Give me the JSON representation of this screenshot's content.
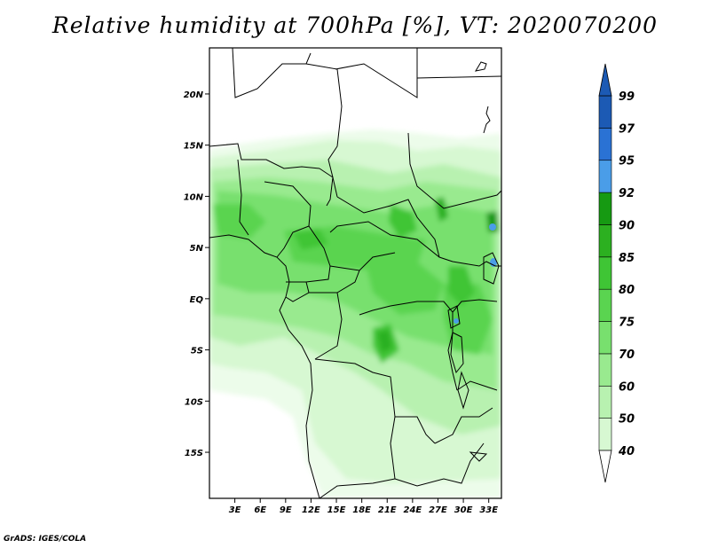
{
  "title": "Relative humidity at 700hPa [%], VT: 2020070200",
  "credit": "GrADS: IGES/COLA",
  "map": {
    "lat_range": [
      -19.5,
      24.5
    ],
    "lon_range": [
      0,
      34.5
    ],
    "lat_ticks": [
      {
        "value": 20,
        "label": "20N"
      },
      {
        "value": 15,
        "label": "15N"
      },
      {
        "value": 10,
        "label": "10N"
      },
      {
        "value": 5,
        "label": "5N"
      },
      {
        "value": 0,
        "label": "EQ"
      },
      {
        "value": -5,
        "label": "5S"
      },
      {
        "value": -10,
        "label": "10S"
      },
      {
        "value": -15,
        "label": "15S"
      }
    ],
    "lon_ticks": [
      {
        "value": 3,
        "label": "3E"
      },
      {
        "value": 6,
        "label": "6E"
      },
      {
        "value": 9,
        "label": "9E"
      },
      {
        "value": 12,
        "label": "12E"
      },
      {
        "value": 15,
        "label": "15E"
      },
      {
        "value": 18,
        "label": "18E"
      },
      {
        "value": 21,
        "label": "21E"
      },
      {
        "value": 24,
        "label": "24E"
      },
      {
        "value": 27,
        "label": "27E"
      },
      {
        "value": 30,
        "label": "30E"
      },
      {
        "value": 33,
        "label": "33E"
      }
    ]
  },
  "colorbar": {
    "levels": [
      "40",
      "50",
      "60",
      "70",
      "75",
      "80",
      "85",
      "90",
      "92",
      "95",
      "97",
      "99"
    ],
    "colors": [
      "#ecfcea",
      "#d7f8d2",
      "#b8f1b0",
      "#99ea8f",
      "#78e06e",
      "#5ad450",
      "#3fc535",
      "#2cb020",
      "#169a12",
      "#4a9de8",
      "#2a72d4",
      "#1c5ab4"
    ],
    "below_color": "#ffffff",
    "above_color": "#1c5ab4"
  }
}
